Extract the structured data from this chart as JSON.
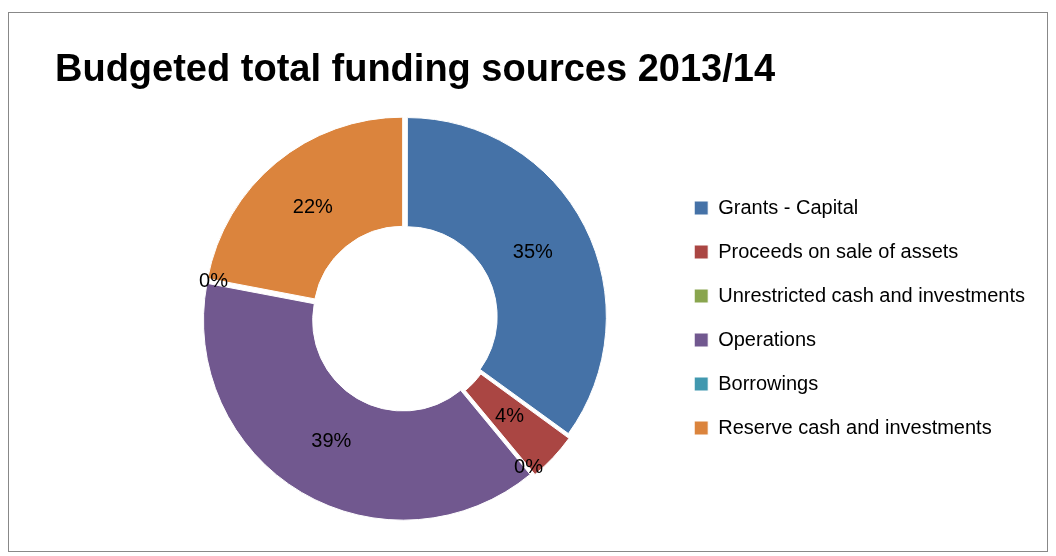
{
  "chart_data": {
    "type": "donut",
    "title": "Budgeted total funding sources 2013/14",
    "categories": [
      "Grants - Capital",
      "Proceeds on sale of assets",
      "Unrestricted cash and investments",
      "Operations",
      "Borrowings",
      "Reserve cash and investments"
    ],
    "values": [
      35,
      4,
      0,
      39,
      0,
      22
    ],
    "colors": [
      "#4572a7",
      "#aa4643",
      "#89a54e",
      "#71588f",
      "#4198af",
      "#db843d"
    ],
    "value_labels": [
      "35%",
      "4%",
      "0%",
      "39%",
      "0%",
      "22%"
    ],
    "legend": "right"
  }
}
